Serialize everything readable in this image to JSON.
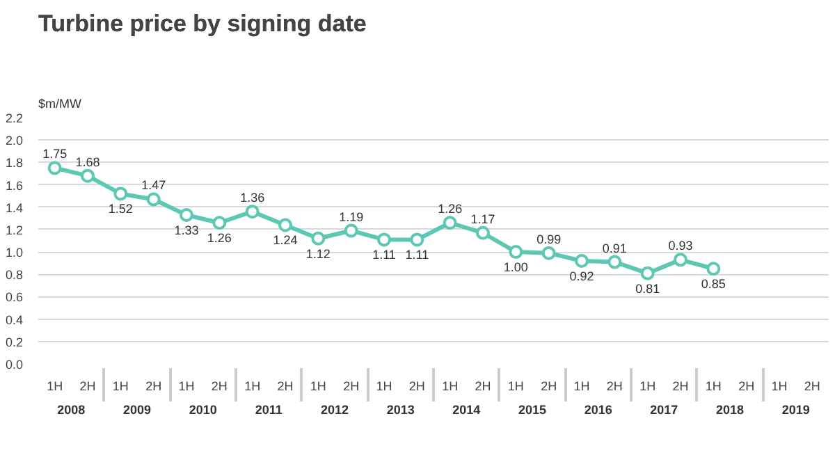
{
  "chart_data": {
    "type": "line",
    "title": "Turbine price by signing date",
    "ylabel": "$m/MW",
    "categories": [
      "1H",
      "2H",
      "1H",
      "2H",
      "1H",
      "2H",
      "1H",
      "2H",
      "1H",
      "2H",
      "1H",
      "2H",
      "1H",
      "2H",
      "1H",
      "2H",
      "1H",
      "2H",
      "1H",
      "2H",
      "1H",
      "2H",
      "1H",
      "2H"
    ],
    "annotations": [
      "2008",
      "2009",
      "2010",
      "2011",
      "2012",
      "2013",
      "2014",
      "2015",
      "2016",
      "2017",
      "2018",
      "2019"
    ],
    "series": [
      {
        "color": "#5cc8b4",
        "values": [
          1.75,
          1.68,
          1.52,
          1.47,
          1.33,
          1.26,
          1.36,
          1.24,
          1.12,
          1.19,
          1.11,
          1.11,
          1.26,
          1.17,
          1.0,
          0.99,
          0.92,
          0.91,
          0.81,
          0.93,
          0.85,
          null,
          null,
          null
        ],
        "value_labels": [
          "1.75",
          "1.68",
          "1.52",
          "1.47",
          "1.33",
          "1.26",
          "1.36",
          "1.24",
          "1.12",
          "1.19",
          "1.11",
          "1.11",
          "1.26",
          "1.17",
          "1.00",
          "0.99",
          "0.92",
          "0.91",
          "0.81",
          "0.93",
          "0.85",
          null,
          null,
          null
        ]
      }
    ],
    "ylim": [
      0,
      2.2
    ],
    "yticks": [
      {
        "value": 0,
        "label": "0.0"
      },
      0.2,
      0.4,
      0.6,
      0.8,
      {
        "value": 1,
        "label": "1.0"
      },
      1.2,
      1.4,
      1.6,
      1.8,
      {
        "value": 2,
        "label": "2.0"
      },
      2.2
    ],
    "grid": "y",
    "marker": "circle",
    "line_style": "solid"
  }
}
